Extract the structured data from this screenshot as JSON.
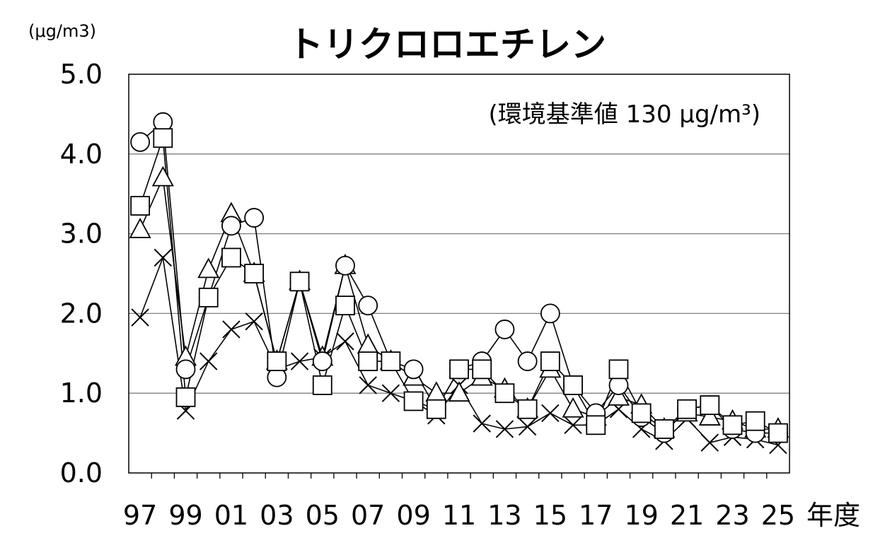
{
  "chart_data": {
    "type": "line",
    "title": "トリクロロエチレン",
    "ylabel": "(μg/m3)",
    "xlabel": "年度",
    "annotation": "(環境基準値 130 μg/m³)",
    "ylim": [
      0,
      5
    ],
    "yticks": [
      "0.0",
      "1.0",
      "2.0",
      "3.0",
      "4.0",
      "5.0"
    ],
    "grid": true,
    "categories": [
      "97",
      "98",
      "99",
      "00",
      "01",
      "02",
      "03",
      "04",
      "05",
      "06",
      "07",
      "08",
      "09",
      "10",
      "11",
      "12",
      "13",
      "14",
      "15",
      "16",
      "17",
      "18",
      "19",
      "20",
      "21",
      "22",
      "23",
      "24",
      "25"
    ],
    "x_tick_labels": [
      "97",
      "99",
      "01",
      "03",
      "05",
      "07",
      "09",
      "11",
      "13",
      "15",
      "17",
      "19",
      "21",
      "23",
      "25"
    ],
    "series": [
      {
        "marker": "circle",
        "values": [
          4.15,
          4.4,
          1.3,
          2.2,
          3.1,
          3.2,
          1.2,
          2.4,
          1.4,
          2.6,
          2.1,
          1.4,
          1.3,
          0.8,
          1.3,
          1.4,
          1.8,
          1.4,
          2.0,
          1.1,
          0.75,
          1.1,
          0.7,
          0.5,
          0.8,
          0.85,
          0.55,
          0.5,
          0.5
        ]
      },
      {
        "marker": "square",
        "values": [
          3.35,
          4.2,
          0.95,
          2.2,
          2.7,
          2.5,
          1.4,
          2.4,
          1.1,
          2.1,
          1.4,
          1.4,
          0.9,
          0.8,
          1.3,
          1.3,
          1.0,
          0.8,
          1.4,
          1.1,
          0.6,
          1.3,
          0.75,
          0.55,
          0.8,
          0.85,
          0.6,
          0.65,
          0.5
        ]
      },
      {
        "marker": "triangle",
        "values": [
          3.05,
          3.7,
          1.45,
          2.55,
          3.25,
          2.5,
          1.4,
          2.4,
          1.45,
          2.6,
          1.6,
          1.4,
          1.2,
          1.0,
          1.0,
          1.2,
          1.05,
          0.8,
          1.3,
          0.8,
          0.7,
          0.95,
          0.85,
          0.55,
          0.75,
          0.7,
          0.65,
          0.55,
          0.55
        ]
      },
      {
        "marker": "cross",
        "values": [
          1.95,
          2.7,
          0.78,
          1.4,
          1.8,
          1.9,
          1.3,
          1.4,
          1.45,
          1.65,
          1.1,
          1.0,
          0.9,
          0.72,
          1.1,
          0.62,
          0.55,
          0.58,
          0.75,
          0.6,
          0.6,
          0.8,
          0.55,
          0.4,
          0.68,
          0.38,
          0.45,
          0.42,
          0.35
        ]
      }
    ]
  }
}
